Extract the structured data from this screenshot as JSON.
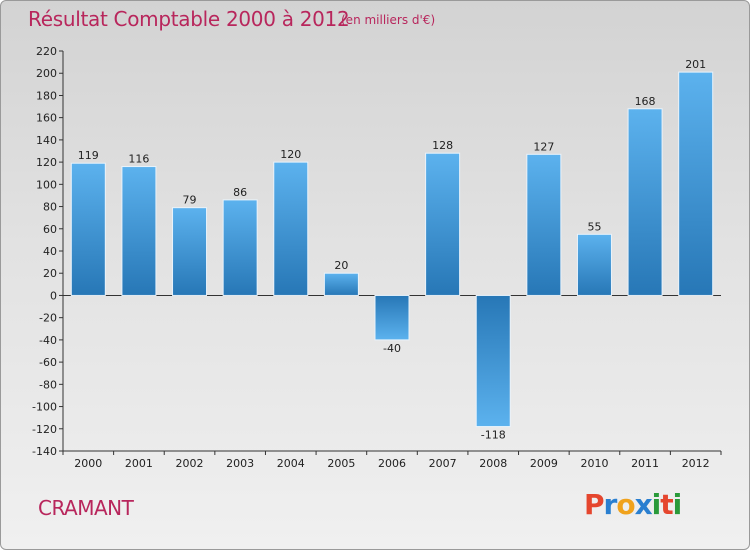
{
  "chart_data": {
    "type": "bar",
    "title": "Résultat Comptable 2000 à 2012",
    "subtitle": "(en milliers d'€)",
    "categories": [
      "2000",
      "2001",
      "2002",
      "2003",
      "2004",
      "2005",
      "2006",
      "2007",
      "2008",
      "2009",
      "2010",
      "2011",
      "2012"
    ],
    "values": [
      119,
      116,
      79,
      86,
      120,
      20,
      -40,
      128,
      -118,
      127,
      55,
      168,
      201
    ],
    "xlabel": "",
    "ylabel": "",
    "ylim": [
      -140,
      220
    ],
    "yticks": [
      220,
      200,
      180,
      160,
      140,
      120,
      100,
      80,
      60,
      40,
      20,
      0,
      -20,
      -40,
      -60,
      -80,
      -100,
      -120,
      -140
    ],
    "ytick_labels": [
      "220",
      "200",
      "180",
      "160",
      "140",
      "120",
      "100",
      "80",
      "60",
      "40",
      "20",
      "0",
      "-20",
      "-40",
      "-60",
      "-80",
      "-100",
      "-120",
      "-140"
    ],
    "grid": false,
    "legend": "none"
  },
  "footer": {
    "town": "CRAMANT",
    "logo_letters": [
      "P",
      "r",
      "o",
      "x",
      "i",
      "t",
      "i"
    ],
    "logo_colors": [
      "#e5462e",
      "#2a7fd0",
      "#f0a21c",
      "#2a7fd0",
      "#2a9a3a",
      "#e5462e",
      "#2a9a3a"
    ]
  },
  "colors": {
    "accent": "#b8265c",
    "bar_light": "#5cb2ee",
    "bar_dark": "#2777b6"
  }
}
